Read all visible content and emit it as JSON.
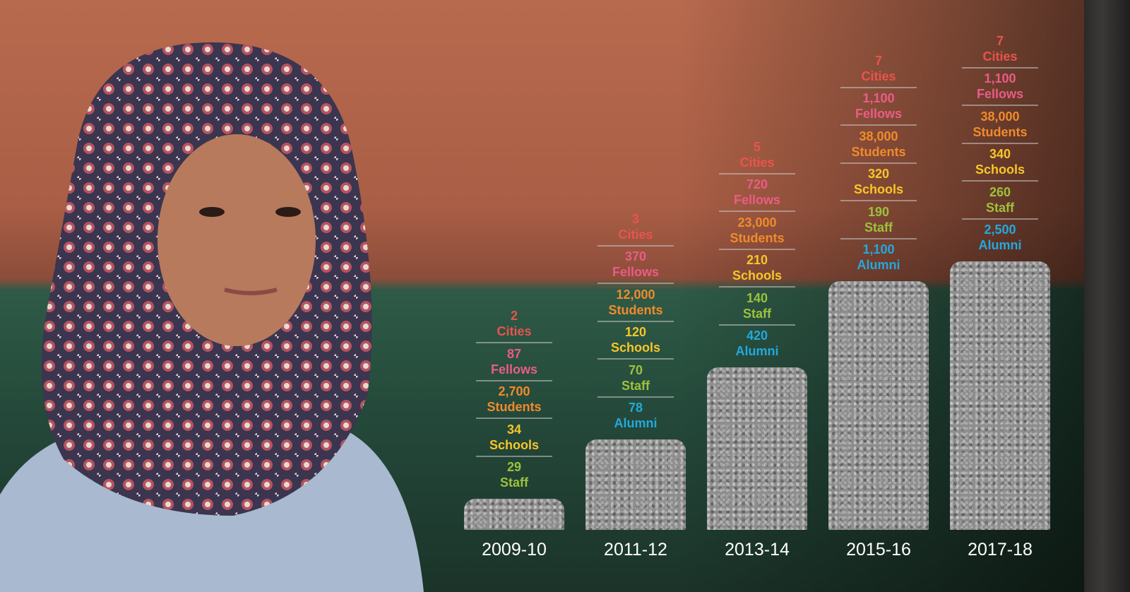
{
  "columns": [
    {
      "year": "2009-10",
      "stats": [
        {
          "value": "2",
          "label": "Cities"
        },
        {
          "value": "87",
          "label": "Fellows"
        },
        {
          "value": "2,700",
          "label": "Students"
        },
        {
          "value": "34",
          "label": "Schools"
        },
        {
          "value": "29",
          "label": "Staff"
        }
      ]
    },
    {
      "year": "2011-12",
      "stats": [
        {
          "value": "3",
          "label": "Cities"
        },
        {
          "value": "370",
          "label": "Fellows"
        },
        {
          "value": "12,000",
          "label": "Students"
        },
        {
          "value": "120",
          "label": "Schools"
        },
        {
          "value": "70",
          "label": "Staff"
        },
        {
          "value": "78",
          "label": "Alumni"
        }
      ]
    },
    {
      "year": "2013-14",
      "stats": [
        {
          "value": "5",
          "label": "Cities"
        },
        {
          "value": "720",
          "label": "Fellows"
        },
        {
          "value": "23,000",
          "label": "Students"
        },
        {
          "value": "210",
          "label": "Schools"
        },
        {
          "value": "140",
          "label": "Staff"
        },
        {
          "value": "420",
          "label": "Alumni"
        }
      ]
    },
    {
      "year": "2015-16",
      "stats": [
        {
          "value": "7",
          "label": "Cities"
        },
        {
          "value": "1,100",
          "label": "Fellows"
        },
        {
          "value": "38,000",
          "label": "Students"
        },
        {
          "value": "320",
          "label": "Schools"
        },
        {
          "value": "190",
          "label": "Staff"
        },
        {
          "value": "1,100",
          "label": "Alumni"
        }
      ]
    },
    {
      "year": "2017-18",
      "stats": [
        {
          "value": "7",
          "label": "Cities"
        },
        {
          "value": "1,100",
          "label": "Fellows"
        },
        {
          "value": "38,000",
          "label": "Students"
        },
        {
          "value": "340",
          "label": "Schools"
        },
        {
          "value": "260",
          "label": "Staff"
        },
        {
          "value": "2,500",
          "label": "Alumni"
        }
      ]
    }
  ]
}
